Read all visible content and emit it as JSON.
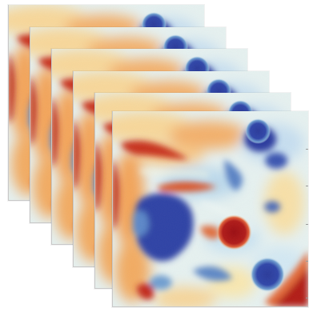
{
  "figure": {
    "frame_count": 6,
    "colormap": [
      "#2f3fa0",
      "#6f9ed0",
      "#d9ecf3",
      "#f6f1c9",
      "#f5a663",
      "#c6331d",
      "#9b0d12"
    ]
  }
}
